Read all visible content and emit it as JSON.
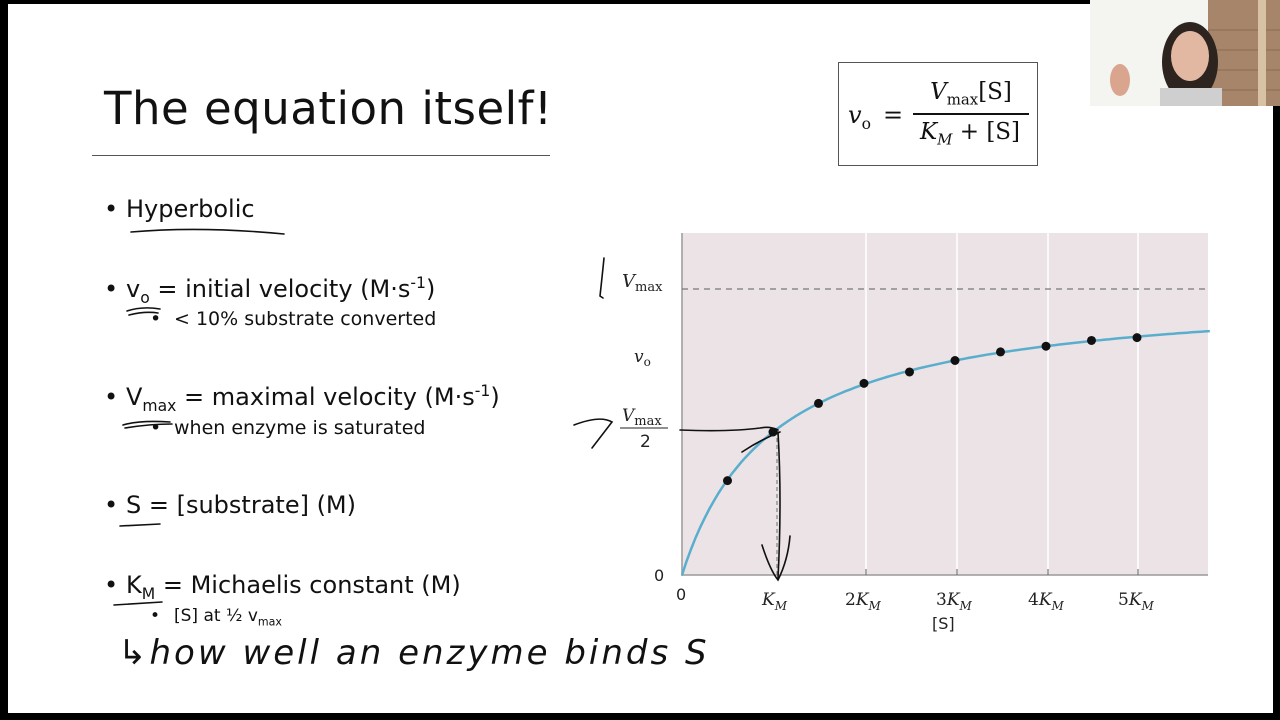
{
  "slide": {
    "title": "The equation itself!",
    "bullets": [
      {
        "id": "hyperbolic",
        "text": "Hyperbolic"
      },
      {
        "id": "vo",
        "symbol": "v",
        "sub": "o",
        "text": " = initial velocity (M·s",
        "sup": "-1",
        "close": ")",
        "subbullet": "< 10% substrate converted"
      },
      {
        "id": "vmax",
        "symbol": "V",
        "sub": "max",
        "text": " = maximal velocity (M·s",
        "sup": "-1",
        "close": ")",
        "subbullet": "when enzyme is saturated"
      },
      {
        "id": "s",
        "text": "S = [substrate] (M)"
      },
      {
        "id": "km",
        "symbol": "K",
        "sub": "M",
        "text": " = Michaelis constant (M)",
        "subbullet_prefix": "[S] at ½ v",
        "subbullet_sub": "max"
      }
    ],
    "handwritten_note": "↳how well an enzyme binds S"
  },
  "equation": {
    "lhs": "v",
    "lhs_sub": "o",
    "equals": "=",
    "numerator": "V",
    "numerator_sub": "max",
    "numerator_tail": "[S]",
    "denominator": "K",
    "denominator_sub": "M",
    "denominator_tail": " + [S]"
  },
  "chart_data": {
    "type": "line",
    "title": "",
    "xlabel": "[S]",
    "ylabel": "v_o",
    "x_ticks": [
      "0",
      "K_M",
      "2K_M",
      "3K_M",
      "4K_M",
      "5K_M"
    ],
    "y_ticks": [
      "0",
      "V_max/2",
      "V_max"
    ],
    "xlim": [
      0,
      5.8
    ],
    "ylim": [
      0,
      1.2
    ],
    "grid": true,
    "background": "#ebe3e6",
    "curve_color": "#5aaecd",
    "series": [
      {
        "name": "Michaelis-Menten curve (v_o = Vmax[S]/(K_M+[S]))",
        "kind": "curve",
        "vmax": 1.0,
        "km": 1.0
      },
      {
        "name": "data points",
        "kind": "scatter",
        "x": [
          0.5,
          1.0,
          1.5,
          2.0,
          2.5,
          3.0,
          3.5,
          4.0,
          4.5,
          5.0
        ],
        "y": [
          0.33,
          0.5,
          0.6,
          0.67,
          0.71,
          0.75,
          0.78,
          0.8,
          0.82,
          0.83
        ]
      }
    ],
    "annotations": [
      {
        "type": "dashed-hline",
        "y": 1.0,
        "label": "V_max"
      },
      {
        "type": "dashed-vline",
        "x": 1.0,
        "label": "K_M"
      },
      {
        "type": "handwritten-arrow",
        "from": "V_max/2",
        "to": "K_M"
      }
    ]
  },
  "presenter_video": {
    "label": "presenter webcam"
  }
}
